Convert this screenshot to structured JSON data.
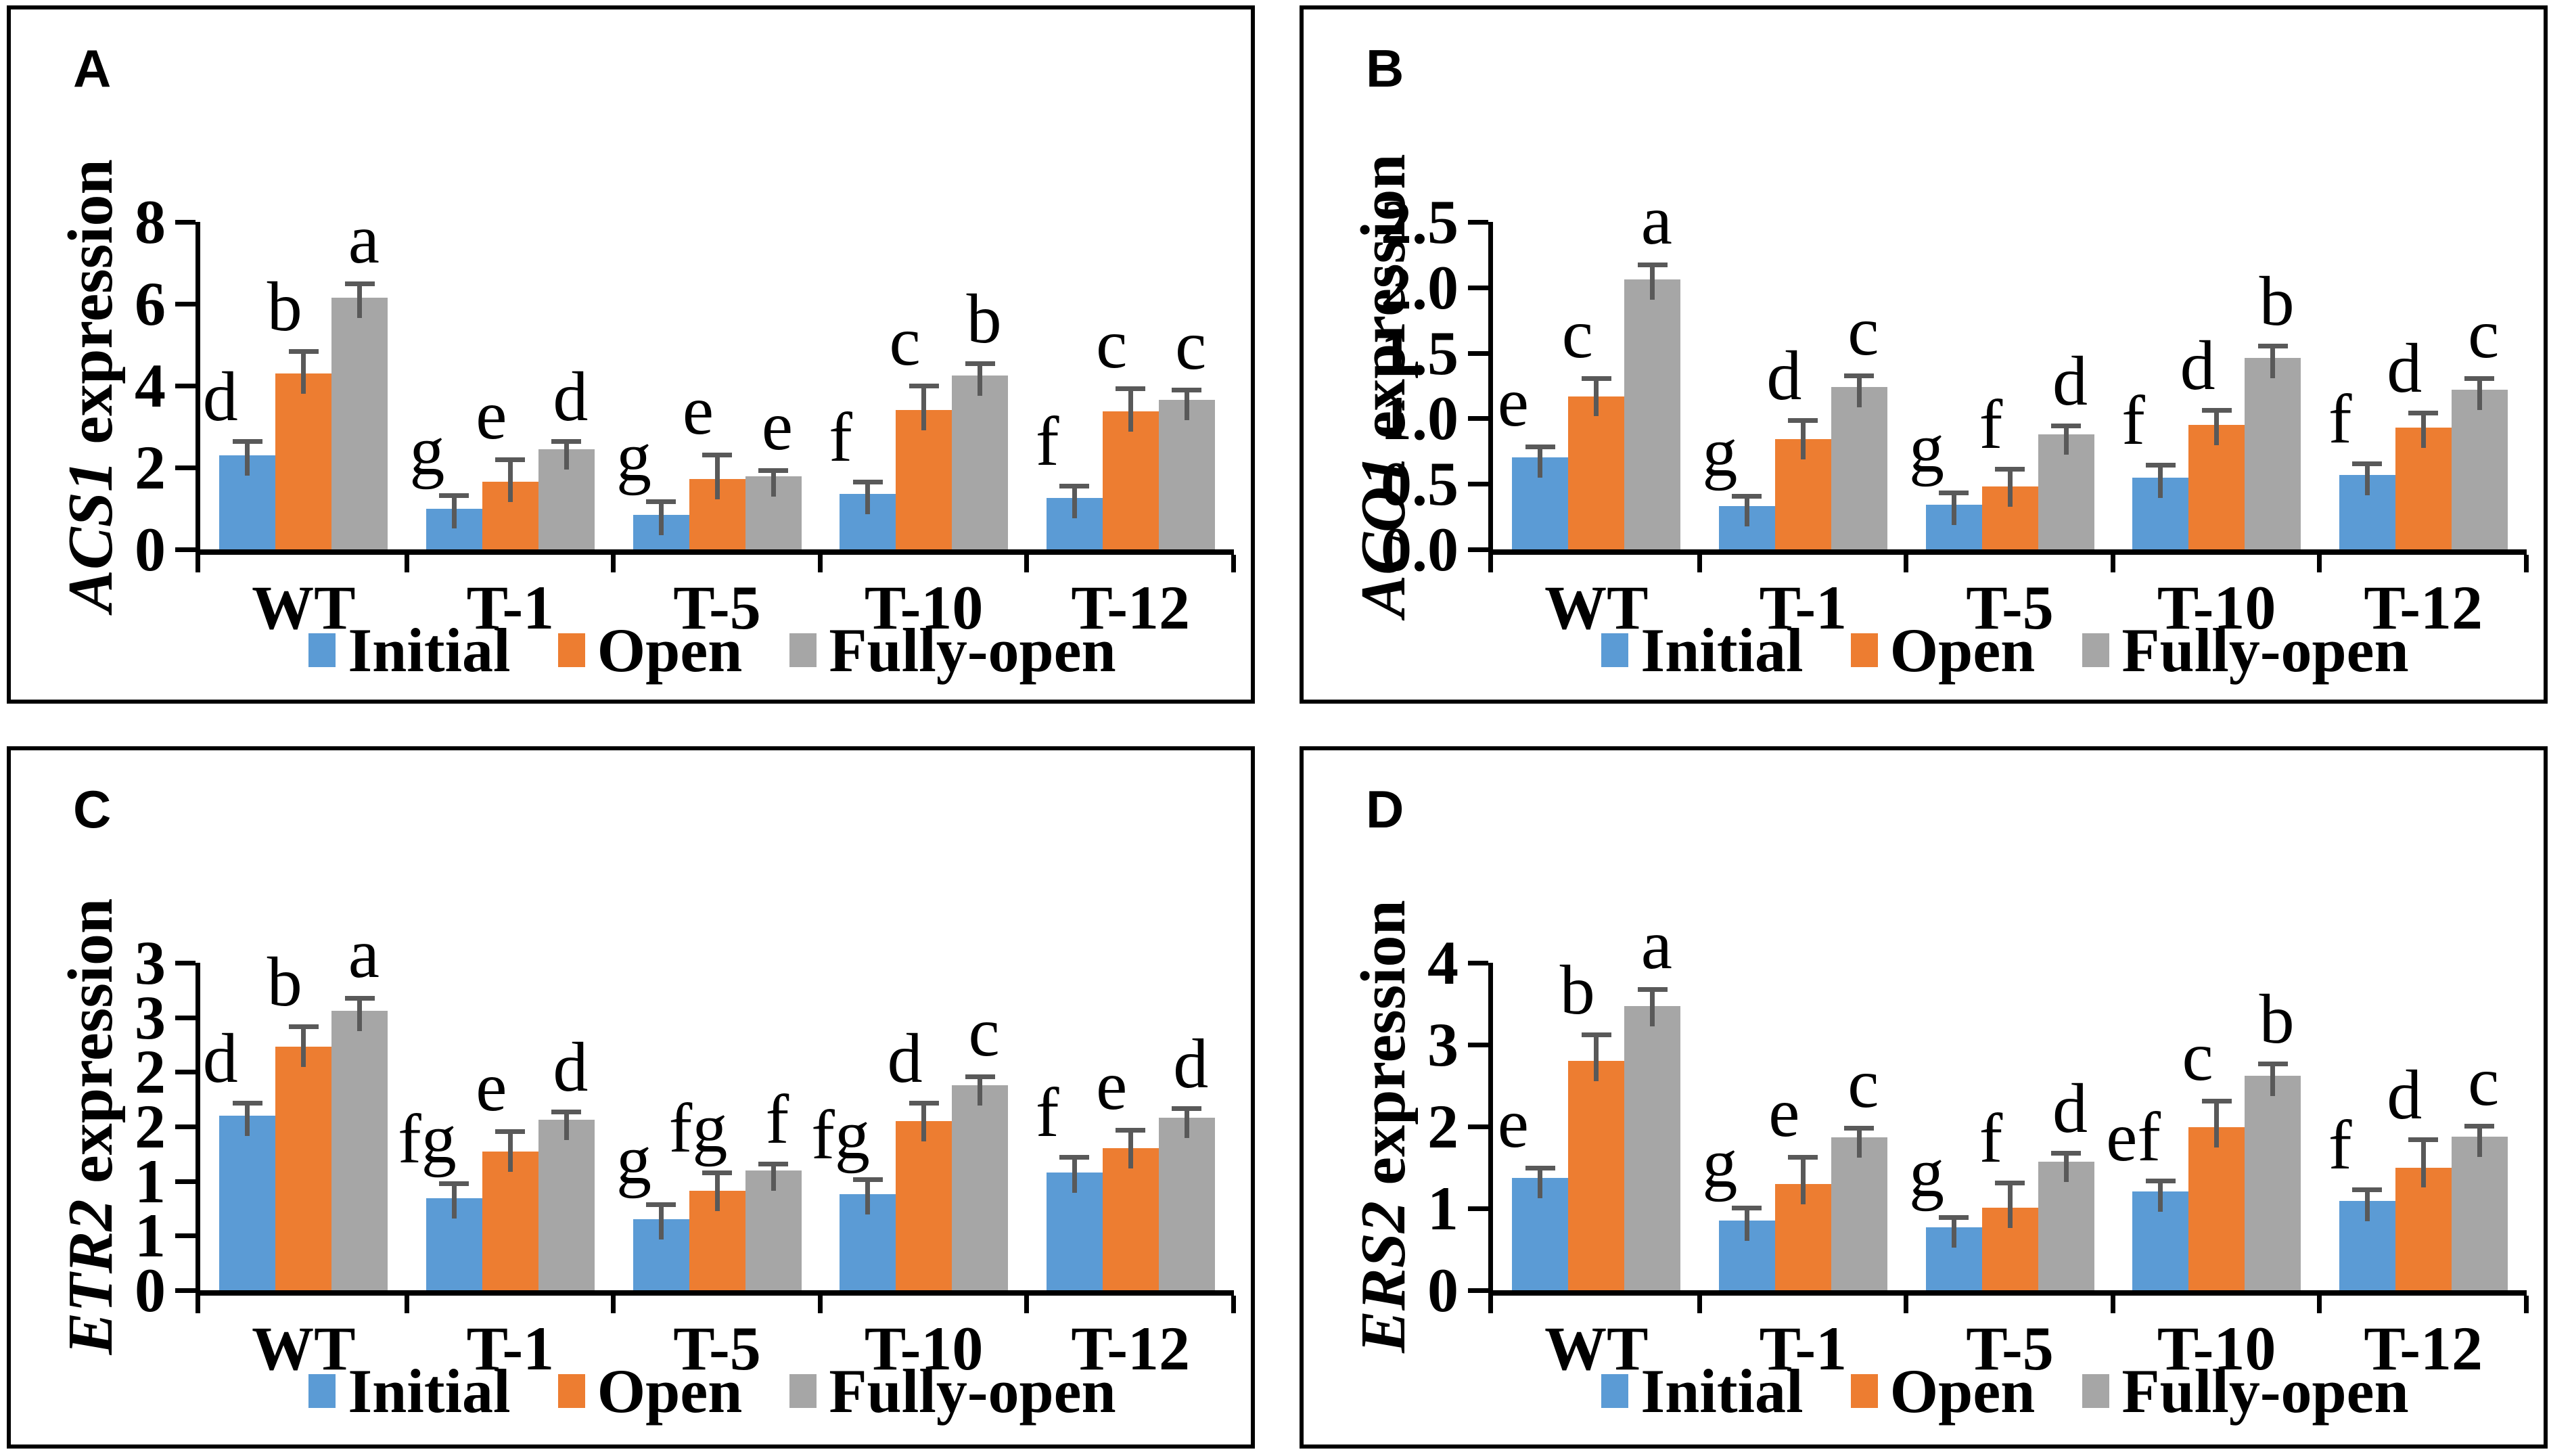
{
  "legend": {
    "items": [
      {
        "label": "Initial",
        "color": "#5B9BD5"
      },
      {
        "label": "Open",
        "color": "#ED7D31"
      },
      {
        "label": "Fully-open",
        "color": "#A6A6A6"
      }
    ]
  },
  "colors": {
    "initial": "#5B9BD5",
    "open": "#ED7D31",
    "fully_open": "#A6A6A6",
    "error_bar": "#595959",
    "axis": "#000000"
  },
  "chart_data": [
    {
      "type": "bar",
      "panel_label": "A",
      "ylabel_gene": "ACS1",
      "ylabel_suffix": " expression",
      "ylim": [
        0,
        8
      ],
      "grid": false,
      "legend_position": "bottom",
      "yticks": [
        {
          "v": 8,
          "label": "8"
        },
        {
          "v": 6,
          "label": "6"
        },
        {
          "v": 4,
          "label": "4"
        },
        {
          "v": 2,
          "label": "2"
        },
        {
          "v": 0,
          "label": "0"
        }
      ],
      "categories": [
        "WT",
        "T-1",
        "T-5",
        "T-10",
        "T-12"
      ],
      "series": [
        {
          "name": "Initial",
          "color": "#5B9BD5",
          "values": [
            2.3,
            1.0,
            0.85,
            1.35,
            1.25
          ],
          "errors": [
            0.3,
            0.28,
            0.27,
            0.25,
            0.25
          ],
          "letters": [
            "d",
            "g",
            "g",
            "f",
            "f"
          ]
        },
        {
          "name": "Open",
          "color": "#ED7D31",
          "values": [
            4.3,
            1.65,
            1.72,
            3.4,
            3.38
          ],
          "errors": [
            0.5,
            0.5,
            0.55,
            0.55,
            0.5
          ],
          "letters": [
            "b",
            "e",
            "e",
            "c",
            "c"
          ]
        },
        {
          "name": "Fully-open",
          "color": "#A6A6A6",
          "values": [
            6.15,
            2.45,
            1.78,
            4.25,
            3.65
          ],
          "errors": [
            0.3,
            0.15,
            0.1,
            0.25,
            0.2
          ],
          "letters": [
            "a",
            "d",
            "e",
            "b",
            "c"
          ]
        }
      ]
    },
    {
      "type": "bar",
      "panel_label": "B",
      "ylabel_gene": "ACO1",
      "ylabel_suffix": " expression",
      "ylim": [
        0,
        2.5
      ],
      "grid": false,
      "legend_position": "bottom",
      "yticks": [
        {
          "v": 2.5,
          "label": "2.5"
        },
        {
          "v": 2.0,
          "label": "2.0"
        },
        {
          "v": 1.5,
          "label": "1.5"
        },
        {
          "v": 1.0,
          "label": "1.0"
        },
        {
          "v": 0.5,
          "label": "0.5"
        },
        {
          "v": 0.0,
          "label": "0.0"
        }
      ],
      "categories": [
        "WT",
        "T-1",
        "T-5",
        "T-10",
        "T-12"
      ],
      "series": [
        {
          "name": "Initial",
          "color": "#5B9BD5",
          "values": [
            0.7,
            0.33,
            0.34,
            0.55,
            0.57
          ],
          "errors": [
            0.07,
            0.06,
            0.08,
            0.08,
            0.07
          ],
          "letters": [
            "e",
            "g",
            "g",
            "f",
            "f"
          ]
        },
        {
          "name": "Open",
          "color": "#ED7D31",
          "values": [
            1.17,
            0.84,
            0.48,
            0.95,
            0.93
          ],
          "errors": [
            0.12,
            0.13,
            0.12,
            0.1,
            0.1
          ],
          "letters": [
            "c",
            "d",
            "f",
            "d",
            "d"
          ]
        },
        {
          "name": "Fully-open",
          "color": "#A6A6A6",
          "values": [
            2.06,
            1.24,
            0.88,
            1.46,
            1.22
          ],
          "errors": [
            0.1,
            0.07,
            0.05,
            0.08,
            0.07
          ],
          "letters": [
            "a",
            "c",
            "d",
            "b",
            "c"
          ]
        }
      ]
    },
    {
      "type": "bar",
      "panel_label": "C",
      "ylabel_gene": "ETR2",
      "ylabel_suffix": " expression",
      "ylim": [
        0,
        3
      ],
      "grid": false,
      "legend_position": "bottom",
      "yticks": [
        {
          "v": 3.0,
          "label": "3"
        },
        {
          "v": 2.5,
          "label": "3"
        },
        {
          "v": 2.0,
          "label": "2"
        },
        {
          "v": 1.5,
          "label": "2"
        },
        {
          "v": 1.0,
          "label": "1"
        },
        {
          "v": 0.5,
          "label": "1"
        },
        {
          "v": 0.0,
          "label": "0"
        }
      ],
      "categories": [
        "WT",
        "T-1",
        "T-5",
        "T-10",
        "T-12"
      ],
      "series": [
        {
          "name": "Initial",
          "color": "#5B9BD5",
          "values": [
            1.6,
            0.84,
            0.65,
            0.88,
            1.08
          ],
          "errors": [
            0.1,
            0.12,
            0.12,
            0.12,
            0.12
          ],
          "letters": [
            "d",
            "fg",
            "g",
            "fg",
            "f"
          ]
        },
        {
          "name": "Open",
          "color": "#ED7D31",
          "values": [
            2.23,
            1.27,
            0.91,
            1.55,
            1.3
          ],
          "errors": [
            0.17,
            0.17,
            0.15,
            0.15,
            0.15
          ],
          "letters": [
            "b",
            "e",
            "fg",
            "d",
            "e"
          ]
        },
        {
          "name": "Fully-open",
          "color": "#A6A6A6",
          "values": [
            2.56,
            1.56,
            1.1,
            1.88,
            1.58
          ],
          "errors": [
            0.1,
            0.06,
            0.04,
            0.06,
            0.07
          ],
          "letters": [
            "a",
            "d",
            "f",
            "c",
            "d"
          ]
        }
      ]
    },
    {
      "type": "bar",
      "panel_label": "D",
      "ylabel_gene": "ERS2",
      "ylabel_suffix": " expression",
      "ylim": [
        0,
        4
      ],
      "grid": false,
      "legend_position": "bottom",
      "yticks": [
        {
          "v": 4,
          "label": "4"
        },
        {
          "v": 3,
          "label": "3"
        },
        {
          "v": 2,
          "label": "2"
        },
        {
          "v": 1,
          "label": "1"
        },
        {
          "v": 0,
          "label": "0"
        }
      ],
      "categories": [
        "WT",
        "T-1",
        "T-5",
        "T-10",
        "T-12"
      ],
      "series": [
        {
          "name": "Initial",
          "color": "#5B9BD5",
          "values": [
            1.37,
            0.85,
            0.77,
            1.21,
            1.09
          ],
          "errors": [
            0.1,
            0.13,
            0.1,
            0.1,
            0.12
          ],
          "letters": [
            "e",
            "g",
            "g",
            "ef",
            "f"
          ]
        },
        {
          "name": "Open",
          "color": "#ED7D31",
          "values": [
            2.8,
            1.3,
            1.01,
            1.99,
            1.5
          ],
          "errors": [
            0.3,
            0.3,
            0.28,
            0.3,
            0.32
          ],
          "letters": [
            "b",
            "e",
            "f",
            "c",
            "d"
          ]
        },
        {
          "name": "Fully-open",
          "color": "#A6A6A6",
          "values": [
            3.47,
            1.87,
            1.57,
            2.62,
            1.88
          ],
          "errors": [
            0.18,
            0.09,
            0.08,
            0.12,
            0.1
          ],
          "letters": [
            "a",
            "c",
            "d",
            "b",
            "c"
          ]
        }
      ]
    }
  ]
}
